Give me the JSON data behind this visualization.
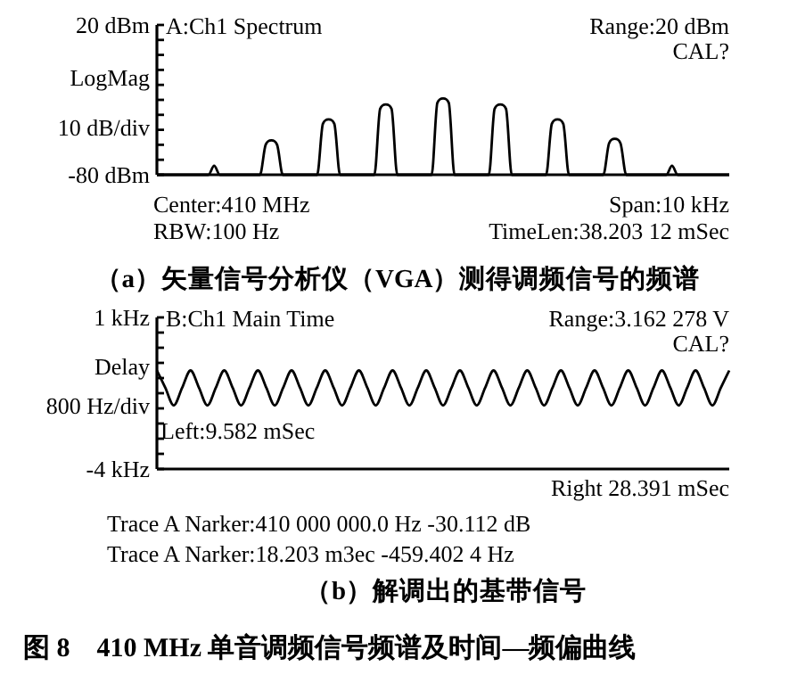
{
  "chart_data": [
    {
      "type": "line",
      "title": "A:Ch1 Spectrum",
      "ylabel": "10 dB/div",
      "annotations": [
        "Range:20 dBm",
        "CAL?",
        "LogMag",
        "Center:410 MHz",
        "Span:10 kHz",
        "RBW:100 Hz",
        "TimeLen:38.203 12 mSec",
        "（a）矢量信号分析仪（VGA）测得调频信号的频谱"
      ],
      "categories": [
        null,
        null,
        null,
        null,
        null,
        null,
        null,
        null,
        null,
        null,
        null,
        null,
        null,
        null,
        null,
        null,
        null,
        null,
        null,
        null,
        null,
        null,
        null,
        null,
        null,
        null,
        null,
        null,
        null,
        null,
        null,
        null,
        null,
        null,
        null,
        null,
        null,
        null,
        null,
        null,
        null,
        null,
        null,
        null,
        null,
        null,
        null,
        null,
        null,
        null,
        null,
        null,
        null,
        null,
        null,
        null,
        null,
        null,
        null,
        null,
        null,
        null,
        null,
        null,
        null,
        null,
        null,
        null,
        null,
        null,
        null,
        null,
        null,
        null,
        null,
        null,
        null,
        null,
        null,
        null,
        null,
        null,
        null,
        null,
        null,
        null,
        null,
        null,
        null,
        null,
        null,
        null,
        null,
        null,
        null,
        null,
        null,
        null,
        null,
        null,
        null
      ],
      "series": [
        {
          "color": "#000000",
          "values": [
            -80,
            -80,
            -80,
            -80,
            -80,
            -80,
            -80,
            -80,
            -80,
            -80,
            -74,
            -80,
            -80,
            -80,
            -80,
            -80,
            -80,
            -80,
            -80,
            -60,
            -57,
            -60,
            -80,
            -80,
            -80,
            -80,
            -80,
            -80,
            -80,
            -46,
            -43,
            -46,
            -80,
            -80,
            -80,
            -80,
            -80,
            -80,
            -80,
            -36,
            -33,
            -36,
            -80,
            -80,
            -80,
            -80,
            -80,
            -80,
            -80,
            -32,
            -29,
            -32,
            -80,
            -80,
            -80,
            -80,
            -80,
            -80,
            -80,
            -36,
            -33,
            -36,
            -80,
            -80,
            -80,
            -80,
            -80,
            -80,
            -80,
            -46,
            -43,
            -46,
            -80,
            -80,
            -80,
            -80,
            -80,
            -80,
            -80,
            -59,
            -56,
            -59,
            -80,
            -80,
            -80,
            -80,
            -80,
            -80,
            -80,
            -80,
            -74,
            -80,
            -80,
            -80,
            -80,
            -80,
            -80,
            -80,
            -80,
            -80,
            -80
          ]
        }
      ],
      "ylim": [
        -80,
        20
      ],
      "yticks": [
        {
          "value": -80,
          "label": "-80 dBm"
        },
        {
          "value": -70,
          "label": null
        },
        {
          "value": -60,
          "label": null
        },
        {
          "value": -50,
          "label": null
        },
        {
          "value": -40,
          "label": null
        },
        {
          "value": -30,
          "label": null
        },
        {
          "value": -20,
          "label": null
        },
        {
          "value": -10,
          "label": null
        },
        {
          "value": 0,
          "label": null
        },
        {
          "value": 10,
          "label": null
        },
        {
          "value": 20,
          "label": "20 dBm"
        }
      ],
      "line_style": "solid"
    },
    {
      "type": "line",
      "title": "B:Ch1 Main Time",
      "ylabel": "800 Hz/div",
      "annotations": [
        "Range:3.162 278 V",
        "CAL?",
        "Delay",
        "Left:9.582 mSec",
        "Right 28.391 mSec",
        "Trace A Narker:410 000 000.0 Hz -30.112 dB",
        "Trace A Narker:18.203 m3ec -459.402 4 Hz",
        "（b）解调出的基带信号",
        "图 8　410 MHz 单音调频信号频谱及时间—频偏曲线"
      ],
      "categories": [
        null,
        null,
        null,
        null,
        null,
        null,
        null,
        null,
        null,
        null,
        null,
        null,
        null,
        null,
        null,
        null,
        null,
        null,
        null,
        null,
        null,
        null,
        null,
        null,
        null,
        null,
        null,
        null,
        null,
        null,
        null,
        null,
        null,
        null,
        null,
        null,
        null,
        null,
        null,
        null,
        null,
        null,
        null,
        null,
        null,
        null,
        null,
        null,
        null,
        null,
        null,
        null,
        null,
        null,
        null,
        null,
        null,
        null,
        null,
        null,
        null,
        null,
        null,
        null,
        null,
        null,
        null,
        null,
        null
      ],
      "series": [
        {
          "color": "#000000",
          "values": [
            -0.75,
            -1.32,
            -1.9,
            -1.32,
            -0.75,
            -1.32,
            -1.9,
            -1.32,
            -0.75,
            -1.32,
            -1.9,
            -1.32,
            -0.75,
            -1.32,
            -1.9,
            -1.32,
            -0.75,
            -1.32,
            -1.9,
            -1.32,
            -0.75,
            -1.32,
            -1.9,
            -1.32,
            -0.75,
            -1.32,
            -1.9,
            -1.32,
            -0.75,
            -1.32,
            -1.9,
            -1.32,
            -0.75,
            -1.32,
            -1.9,
            -1.32,
            -0.75,
            -1.32,
            -1.9,
            -1.32,
            -0.75,
            -1.32,
            -1.9,
            -1.32,
            -0.75,
            -1.32,
            -1.9,
            -1.32,
            -0.75,
            -1.32,
            -1.9,
            -1.32,
            -0.75,
            -1.32,
            -1.9,
            -1.32,
            -0.75,
            -1.32,
            -1.9,
            -1.32,
            -0.75,
            -1.32,
            -1.9,
            -1.32,
            -0.75,
            -1.32,
            -1.9,
            -1.32,
            -0.75
          ]
        }
      ],
      "ylim": [
        -4,
        1
      ],
      "yticks": [
        {
          "value": -4,
          "label": "-4 kHz"
        },
        {
          "value": -3.5,
          "label": null
        },
        {
          "value": -3,
          "label": null
        },
        {
          "value": -2.5,
          "label": null
        },
        {
          "value": -2,
          "label": null
        },
        {
          "value": -1.5,
          "label": null
        },
        {
          "value": -1,
          "label": null
        },
        {
          "value": -0.5,
          "label": null
        },
        {
          "value": 0,
          "label": null
        },
        {
          "value": 0.5,
          "label": null
        },
        {
          "value": 1,
          "label": "1 kHz"
        }
      ],
      "line_style": "solid"
    }
  ]
}
